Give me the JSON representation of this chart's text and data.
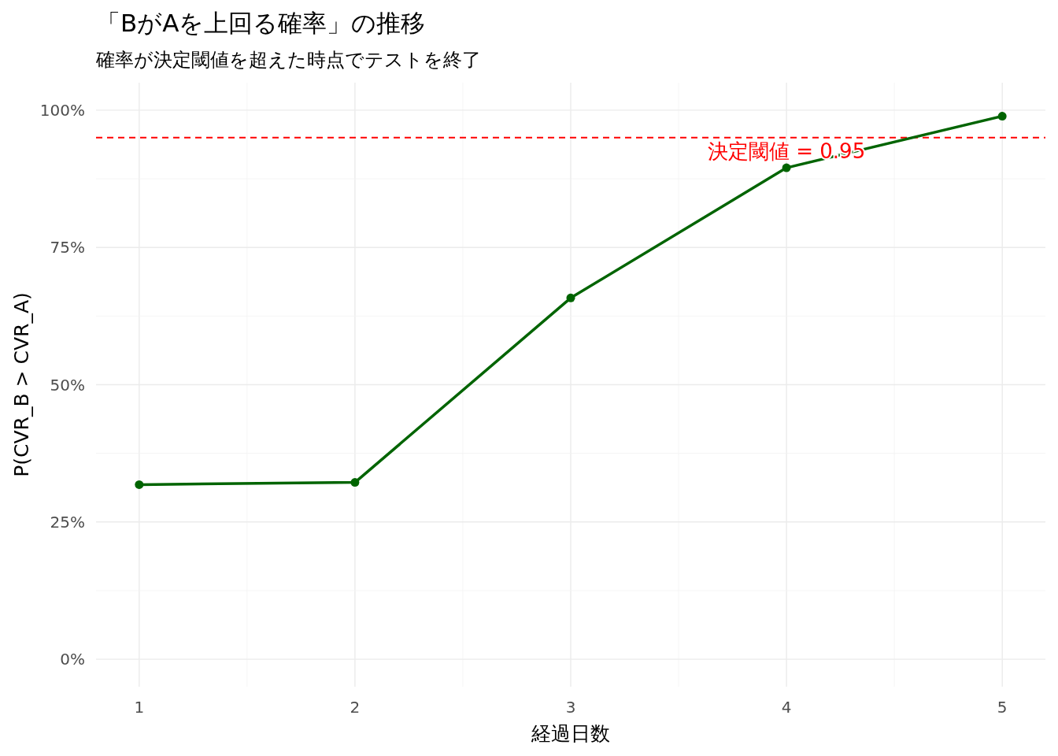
{
  "chart_data": {
    "type": "line",
    "title": "「BがAを上回る確率」の推移",
    "subtitle": "確率が決定閾値を超えた時点でテストを終了",
    "xlabel": "経過日数",
    "ylabel": "P(CVR_B > CVR_A)",
    "x": [
      1,
      2,
      3,
      4,
      5
    ],
    "series": [
      {
        "color": "#006400",
        "values": [
          0.318,
          0.322,
          0.658,
          0.895,
          0.989
        ]
      }
    ],
    "xlim": [
      0.8,
      5.2
    ],
    "xticks": [
      1,
      2,
      3,
      4,
      5
    ],
    "ylim": [
      -0.05,
      1.05
    ],
    "yticks": [
      {
        "value": 0,
        "label": "0%"
      },
      {
        "value": 0.25,
        "label": "25%"
      },
      {
        "value": 0.5,
        "label": "50%"
      },
      {
        "value": 0.75,
        "label": "75%"
      },
      {
        "value": 1,
        "label": "100%"
      }
    ],
    "ref_lines": [
      {
        "axis": "y",
        "value": 0.95,
        "label": "決定閾値 = 0.95",
        "color": "#ff0000",
        "line_style": "dashed"
      }
    ],
    "grid": true,
    "marker": "circle",
    "line_style": "solid"
  }
}
